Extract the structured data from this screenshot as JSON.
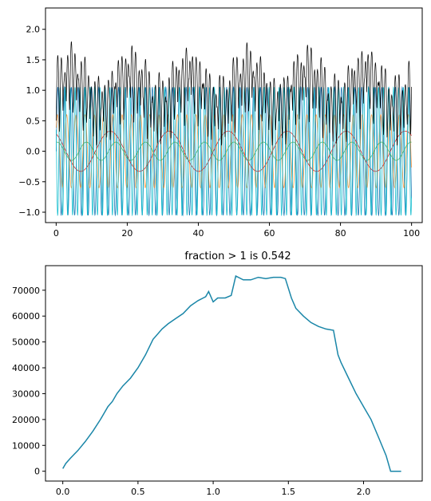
{
  "chart_data": [
    {
      "type": "line",
      "title": "",
      "xlabel": "",
      "ylabel": "",
      "xlim": [
        -3,
        103
      ],
      "ylim": [
        -1.17,
        2.35
      ],
      "xticks": [
        0,
        20,
        40,
        60,
        80,
        100
      ],
      "xtick_labels": [
        "0",
        "20",
        "40",
        "60",
        "80",
        "100"
      ],
      "yticks": [
        -1.0,
        -0.5,
        0.0,
        0.5,
        1.0,
        1.5,
        2.0
      ],
      "ytick_labels": [
        "−1.0",
        "−0.5",
        "0.0",
        "0.5",
        "1.0",
        "1.5",
        "2.0"
      ],
      "grid": false,
      "series": [
        {
          "color": "#1f77b4",
          "desc": "sine, amplitude 1.05, period approx 1.9",
          "x_range": [
            0,
            100
          ],
          "amplitude": 1.05,
          "period": 1.9,
          "offset": 0
        },
        {
          "color": "#ff7f0e",
          "desc": "sine, amplitude 0.6, period approx 2.6",
          "x_range": [
            0,
            100
          ],
          "amplitude": 0.6,
          "period": 2.6,
          "offset": 0
        },
        {
          "color": "#2ca02c",
          "desc": "sine, amplitude 0.15, period approx 8.3",
          "x_range": [
            0,
            100
          ],
          "amplitude": 0.15,
          "period": 8.3,
          "offset": 0
        },
        {
          "color": "#d62728",
          "desc": "sine, amplitude 0.33, period approx 16.6",
          "x_range": [
            0,
            100
          ],
          "amplitude": 0.33,
          "period": 16.6,
          "offset": 0
        },
        {
          "color": "#17becf",
          "desc": "sine, amplitude 1.05, period approx 1.4",
          "x_range": [
            0,
            100
          ],
          "amplitude": 1.05,
          "period": 1.4,
          "offset": 0
        },
        {
          "color": "#000000",
          "desc": "positive envelope, range approx 0.1 to 2.15",
          "x_range": [
            0,
            100
          ],
          "amplitude": null,
          "period": null,
          "offset": null
        }
      ]
    },
    {
      "type": "line",
      "title": "fraction > 1 is 0.542",
      "xlabel": "",
      "ylabel": "",
      "xlim": [
        -0.115,
        2.39
      ],
      "ylim": [
        -3800,
        79500
      ],
      "xticks": [
        0.0,
        0.5,
        1.0,
        1.5,
        2.0
      ],
      "xtick_labels": [
        "0.0",
        "0.5",
        "1.0",
        "1.5",
        "2.0"
      ],
      "yticks": [
        0,
        10000,
        20000,
        30000,
        40000,
        50000,
        60000,
        70000
      ],
      "ytick_labels": [
        "0",
        "10000",
        "20000",
        "30000",
        "40000",
        "50000",
        "60000",
        "70000"
      ],
      "grid": false,
      "series": [
        {
          "color": "#1a86a8",
          "x": [
            0.0,
            0.02,
            0.05,
            0.1,
            0.15,
            0.2,
            0.25,
            0.3,
            0.33,
            0.36,
            0.4,
            0.45,
            0.5,
            0.55,
            0.6,
            0.63,
            0.66,
            0.7,
            0.75,
            0.8,
            0.85,
            0.9,
            0.95,
            0.97,
            1.0,
            1.03,
            1.08,
            1.12,
            1.15,
            1.2,
            1.25,
            1.3,
            1.35,
            1.4,
            1.45,
            1.48,
            1.52,
            1.55,
            1.6,
            1.65,
            1.7,
            1.75,
            1.8,
            1.83,
            1.85,
            1.9,
            1.95,
            2.0,
            2.05,
            2.1,
            2.15,
            2.18,
            2.2,
            2.25
          ],
          "y": [
            1000,
            3000,
            5000,
            8000,
            11500,
            15500,
            20000,
            25000,
            27000,
            30000,
            33000,
            36000,
            40000,
            45000,
            51000,
            53000,
            55000,
            57000,
            59000,
            61000,
            64000,
            66000,
            67500,
            69500,
            65500,
            67000,
            67000,
            68000,
            75500,
            74000,
            74000,
            75000,
            74500,
            75000,
            75000,
            74500,
            67000,
            63000,
            60000,
            57500,
            56000,
            55000,
            54500,
            45000,
            42000,
            36000,
            30000,
            25000,
            20000,
            13000,
            6000,
            0,
            0,
            0
          ]
        }
      ]
    }
  ]
}
